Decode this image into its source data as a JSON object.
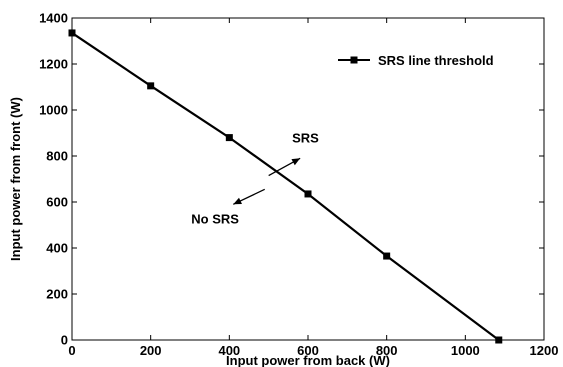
{
  "chart_data": {
    "type": "line",
    "title": "",
    "xlabel": "Input power from back (W)",
    "ylabel": "Input power from front (W)",
    "xlim": [
      0,
      1200
    ],
    "ylim": [
      0,
      1400
    ],
    "xticks": [
      "0",
      "200",
      "400",
      "600",
      "800",
      "1000",
      "1200"
    ],
    "yticks": [
      "0",
      "200",
      "400",
      "600",
      "800",
      "1000",
      "1200",
      "1400"
    ],
    "grid": false,
    "legend": {
      "position": "top-right",
      "entries": [
        "SRS line threshold"
      ]
    },
    "series": [
      {
        "name": "SRS line threshold",
        "marker": "square",
        "color": "#000000",
        "x": [
          0,
          200,
          400,
          600,
          800,
          1085
        ],
        "y": [
          1335,
          1105,
          880,
          635,
          365,
          0
        ]
      }
    ],
    "annotations": [
      {
        "text": "SRS",
        "arrow_from": [
          500,
          715
        ],
        "arrow_to": [
          580,
          790
        ]
      },
      {
        "text": "No SRS",
        "arrow_from": [
          490,
          655
        ],
        "arrow_to": [
          410,
          590
        ]
      }
    ]
  }
}
